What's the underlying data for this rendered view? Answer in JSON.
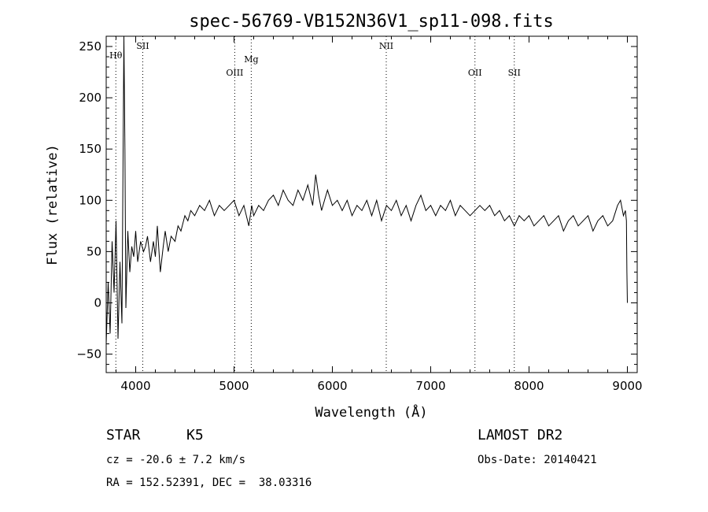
{
  "chart_data": {
    "type": "line",
    "title": "spec-56769-VB152N36V1_sp11-098.fits",
    "xlabel": "Wavelength (Å)",
    "ylabel": "Flux (relative)",
    "xlim": [
      3700,
      9100
    ],
    "ylim": [
      -68,
      260
    ],
    "xticks": [
      4000,
      5000,
      6000,
      7000,
      8000,
      9000
    ],
    "yticks": [
      -50,
      0,
      50,
      100,
      150,
      200,
      250
    ],
    "grid": false,
    "line_color": "#000000",
    "series": [
      {
        "x": [
          3700,
          3720,
          3740,
          3760,
          3780,
          3800,
          3820,
          3840,
          3860,
          3880,
          3890,
          3900,
          3920,
          3940,
          3960,
          3980,
          4000,
          4020,
          4050,
          4080,
          4100,
          4120,
          4150,
          4180,
          4200,
          4220,
          4250,
          4280,
          4300,
          4330,
          4360,
          4400,
          4430,
          4460,
          4500,
          4530,
          4560,
          4600,
          4650,
          4700,
          4750,
          4800,
          4850,
          4900,
          4950,
          5000,
          5050,
          5100,
          5150,
          5180,
          5200,
          5250,
          5300,
          5350,
          5400,
          5450,
          5500,
          5550,
          5600,
          5650,
          5700,
          5750,
          5800,
          5830,
          5860,
          5890,
          5920,
          5950,
          6000,
          6050,
          6100,
          6150,
          6200,
          6250,
          6300,
          6350,
          6400,
          6450,
          6500,
          6550,
          6600,
          6650,
          6700,
          6750,
          6800,
          6850,
          6900,
          6950,
          7000,
          7050,
          7100,
          7150,
          7200,
          7250,
          7300,
          7350,
          7400,
          7450,
          7500,
          7550,
          7600,
          7650,
          7700,
          7750,
          7800,
          7850,
          7900,
          7950,
          8000,
          8050,
          8100,
          8150,
          8200,
          8250,
          8300,
          8350,
          8400,
          8450,
          8500,
          8550,
          8600,
          8650,
          8700,
          8750,
          8800,
          8850,
          8900,
          8930,
          8960,
          8980,
          8990,
          8995,
          9000
        ],
        "y": [
          -40,
          20,
          -30,
          60,
          10,
          80,
          -35,
          40,
          -20,
          260,
          150,
          -5,
          70,
          30,
          55,
          45,
          70,
          40,
          60,
          50,
          55,
          65,
          40,
          60,
          45,
          75,
          30,
          55,
          70,
          50,
          65,
          60,
          75,
          70,
          85,
          80,
          90,
          85,
          95,
          90,
          100,
          85,
          95,
          90,
          95,
          100,
          85,
          95,
          75,
          95,
          85,
          95,
          90,
          100,
          105,
          95,
          110,
          100,
          95,
          110,
          100,
          115,
          95,
          125,
          105,
          90,
          100,
          110,
          95,
          100,
          90,
          100,
          85,
          95,
          90,
          100,
          85,
          100,
          80,
          95,
          90,
          100,
          85,
          95,
          80,
          95,
          105,
          90,
          95,
          85,
          95,
          90,
          100,
          85,
          95,
          90,
          85,
          90,
          95,
          90,
          95,
          85,
          90,
          80,
          85,
          75,
          85,
          80,
          85,
          75,
          80,
          85,
          75,
          80,
          85,
          70,
          80,
          85,
          75,
          80,
          85,
          70,
          80,
          85,
          75,
          80,
          95,
          100,
          85,
          90,
          80,
          30,
          0
        ]
      }
    ],
    "lines": [
      {
        "label": "Hθ",
        "x": 3798
      },
      {
        "label": "SII",
        "x": 4072
      },
      {
        "label": "OIII",
        "x": 5007
      },
      {
        "label": "Mg",
        "x": 5175
      },
      {
        "label": "NII",
        "x": 6548
      },
      {
        "label": "OII",
        "x": 7450
      },
      {
        "label": "SII",
        "x": 7850
      }
    ]
  },
  "footer": {
    "object_type": "STAR",
    "subclass": "K5",
    "survey": "LAMOST DR2",
    "cz": "cz = -20.6 ± 7.2 km/s",
    "obs_date": "Obs-Date: 20140421",
    "radec": "RA = 152.52391, DEC =  38.03316"
  }
}
